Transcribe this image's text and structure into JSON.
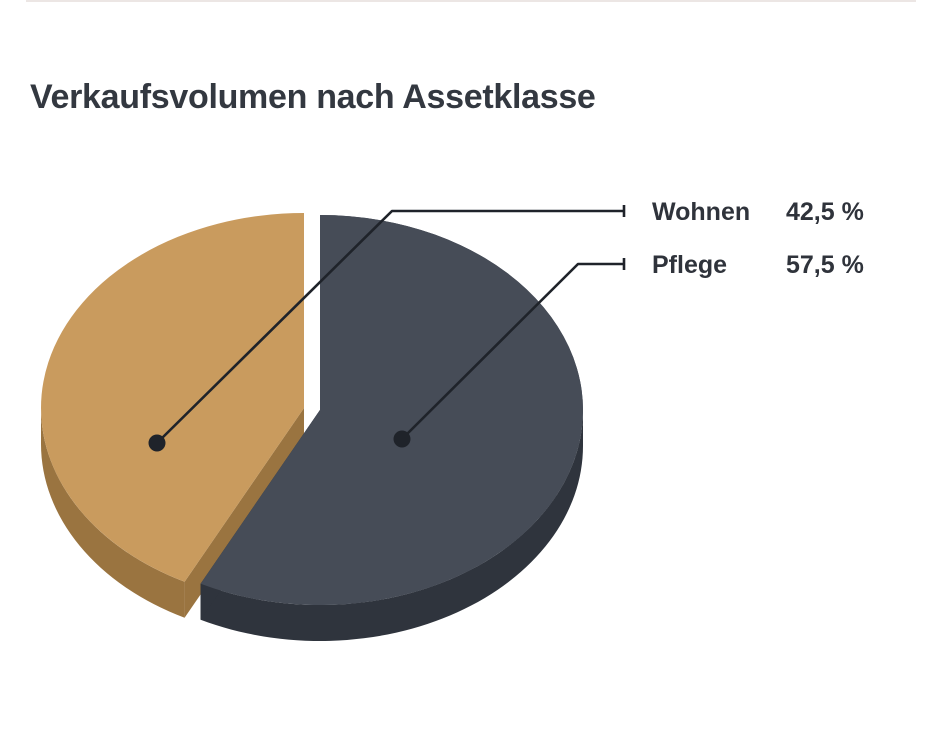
{
  "chart_data": {
    "type": "pie",
    "title": "Verkaufsvolumen nach Assetklasse",
    "slices": [
      {
        "label": "Wohnen",
        "value": 42.5,
        "value_label": "42,5 %",
        "color": "#c99b5e",
        "side_color": "#9a7440"
      },
      {
        "label": "Pflege",
        "value": 57.5,
        "value_label": "57,5 %",
        "color": "#464c57",
        "side_color": "#2f343d"
      }
    ],
    "legend": "right"
  }
}
